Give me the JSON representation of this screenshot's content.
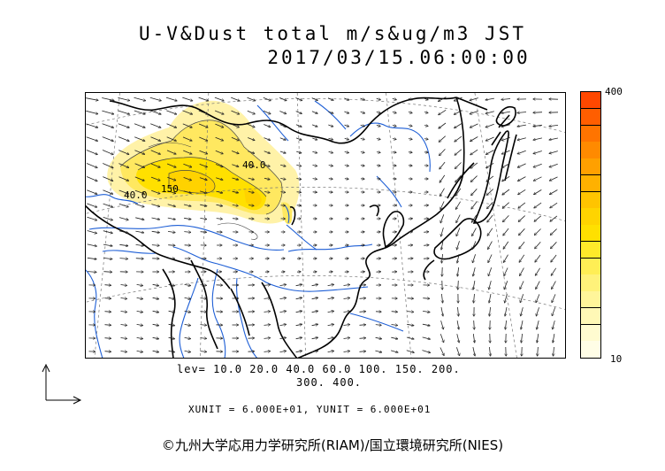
{
  "title": {
    "line1": "U-V&Dust total m/s&ug/m3 JST",
    "line2": "2017/03/15.06:00:00"
  },
  "map": {
    "contour_labels": [
      "40.0",
      "150",
      "40.0"
    ],
    "colors": {
      "coastline": "#000000",
      "rivers": "#1e5fd6",
      "grid": "#777777",
      "vectors": "#222222"
    }
  },
  "colorbar": {
    "top_label": "400",
    "bottom_label": "10",
    "colors": [
      "#ff4800",
      "#ff5e00",
      "#ff7400",
      "#ff8a00",
      "#ffa000",
      "#ffb100",
      "#ffc400",
      "#ffd400",
      "#ffe000",
      "#ffe92a",
      "#ffee55",
      "#fff27a",
      "#fff59a",
      "#fff8b6",
      "#fffbd0",
      "#fffde6"
    ]
  },
  "legend": {
    "lev_line1": "lev= 10.0 20.0 40.0 60.0 100. 150. 200.",
    "lev_line2": "300. 400.",
    "units": "XUNIT = 6.000E+01, YUNIT = 6.000E+01"
  },
  "credit": "©九州大学応用力学研究所(RIAM)/国立環境研究所(NIES)"
}
